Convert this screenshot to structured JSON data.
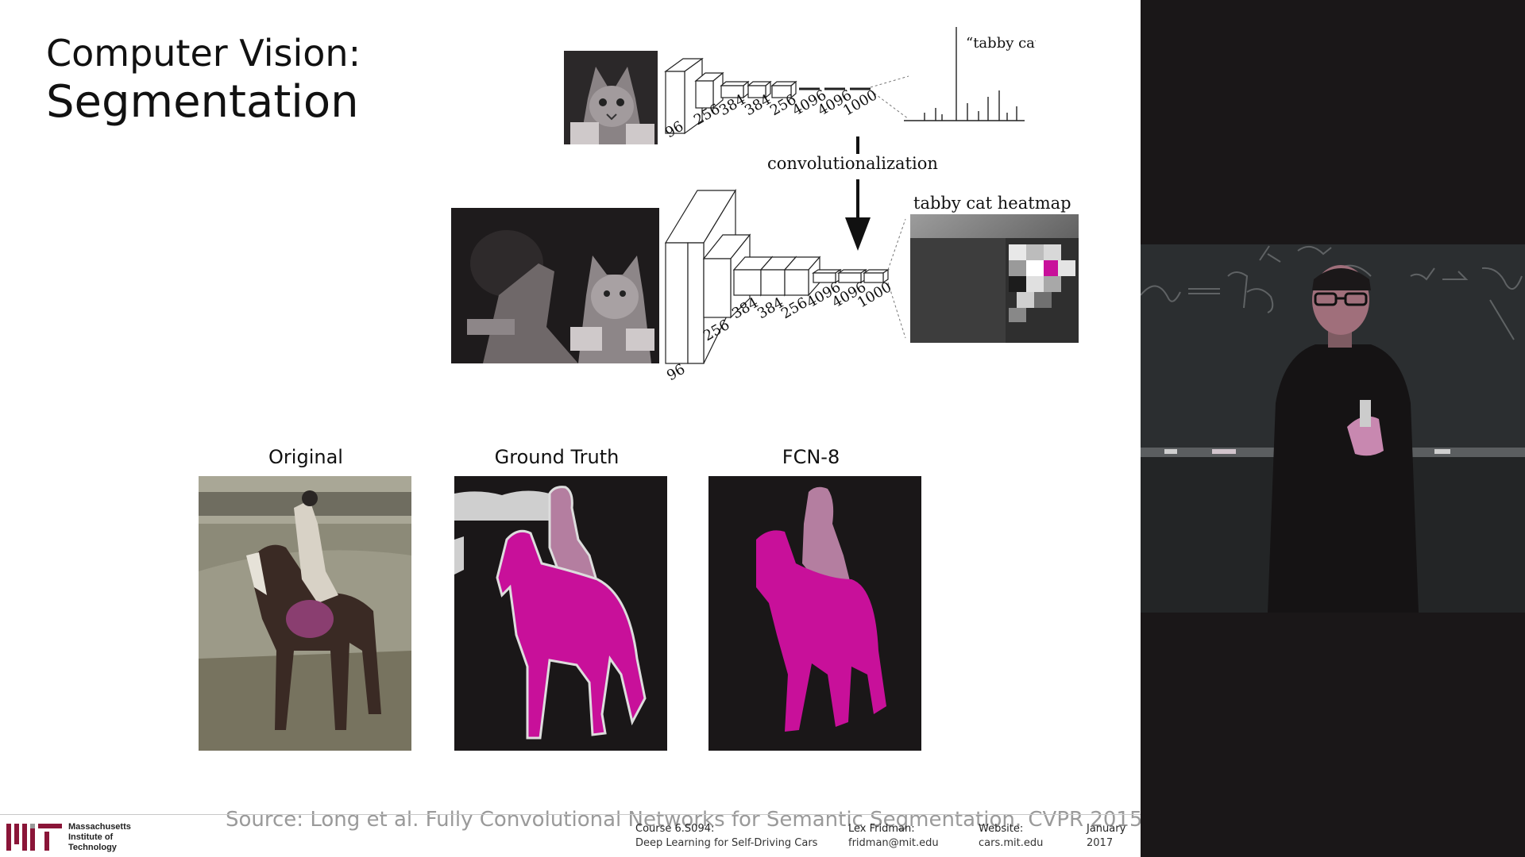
{
  "slide": {
    "title_line1": "Computer Vision:",
    "title_line2": "Segmentation",
    "top_net": {
      "output_label": "“tabby cat”",
      "layer_sizes": [
        "96",
        "256",
        "384",
        "384",
        "256",
        "4096",
        "4096",
        "1000"
      ]
    },
    "transition_label": "convolutionalization",
    "bottom_net": {
      "heatmap_label": "tabby cat heatmap",
      "layer_sizes": [
        "96",
        "256",
        "384",
        "384",
        "256",
        "4096",
        "4096",
        "1000"
      ]
    },
    "captions": {
      "original": "Original",
      "ground_truth": "Ground Truth",
      "fcn": "FCN-8"
    },
    "source": "Source: Long et al. Fully Convolutional Networks for Semantic Segmentation. CVPR 2015"
  },
  "footer": {
    "mit_line1": "Massachusetts",
    "mit_line2": "Institute of",
    "mit_line3": "Technology",
    "course_head": "Course 6.S094:",
    "course_name": "Deep Learning for Self-Driving Cars",
    "author_head": "Lex Fridman:",
    "author_email": "fridman@mit.edu",
    "website_head": "Website:",
    "website_url": "cars.mit.edu",
    "date_month": "January",
    "date_year": "2017"
  },
  "colors": {
    "segment_magenta": "#c8109a",
    "segment_person": "#b47ea0",
    "background_dark": "#1a1718"
  }
}
